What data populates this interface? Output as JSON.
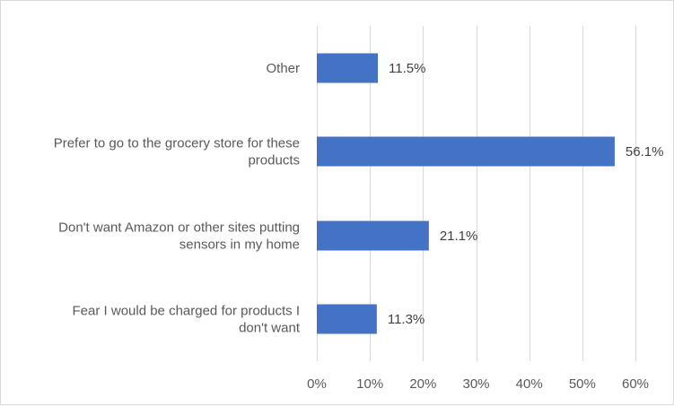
{
  "chart_data": {
    "type": "bar",
    "orientation": "horizontal",
    "title": "",
    "xlabel": "",
    "ylabel": "",
    "categories": [
      [
        "Other"
      ],
      [
        "Prefer to go to the grocery store for these",
        "products"
      ],
      [
        "Don't want Amazon or other sites putting",
        "sensors in my home"
      ],
      [
        "Fear I would be charged for products I",
        "don't want"
      ]
    ],
    "values": [
      11.5,
      56.1,
      21.1,
      11.3
    ],
    "data_labels": [
      "11.5%",
      "56.1%",
      "21.1%",
      "11.3%"
    ],
    "xlim": [
      0,
      60
    ],
    "x_ticks": [
      0,
      10,
      20,
      30,
      40,
      50,
      60
    ],
    "x_tick_labels": [
      "0%",
      "10%",
      "20%",
      "30%",
      "40%",
      "50%",
      "60%"
    ],
    "grid": "vertical",
    "legend": "none",
    "bar_color": "#4472c4",
    "grid_color": "#d9d9d9"
  }
}
